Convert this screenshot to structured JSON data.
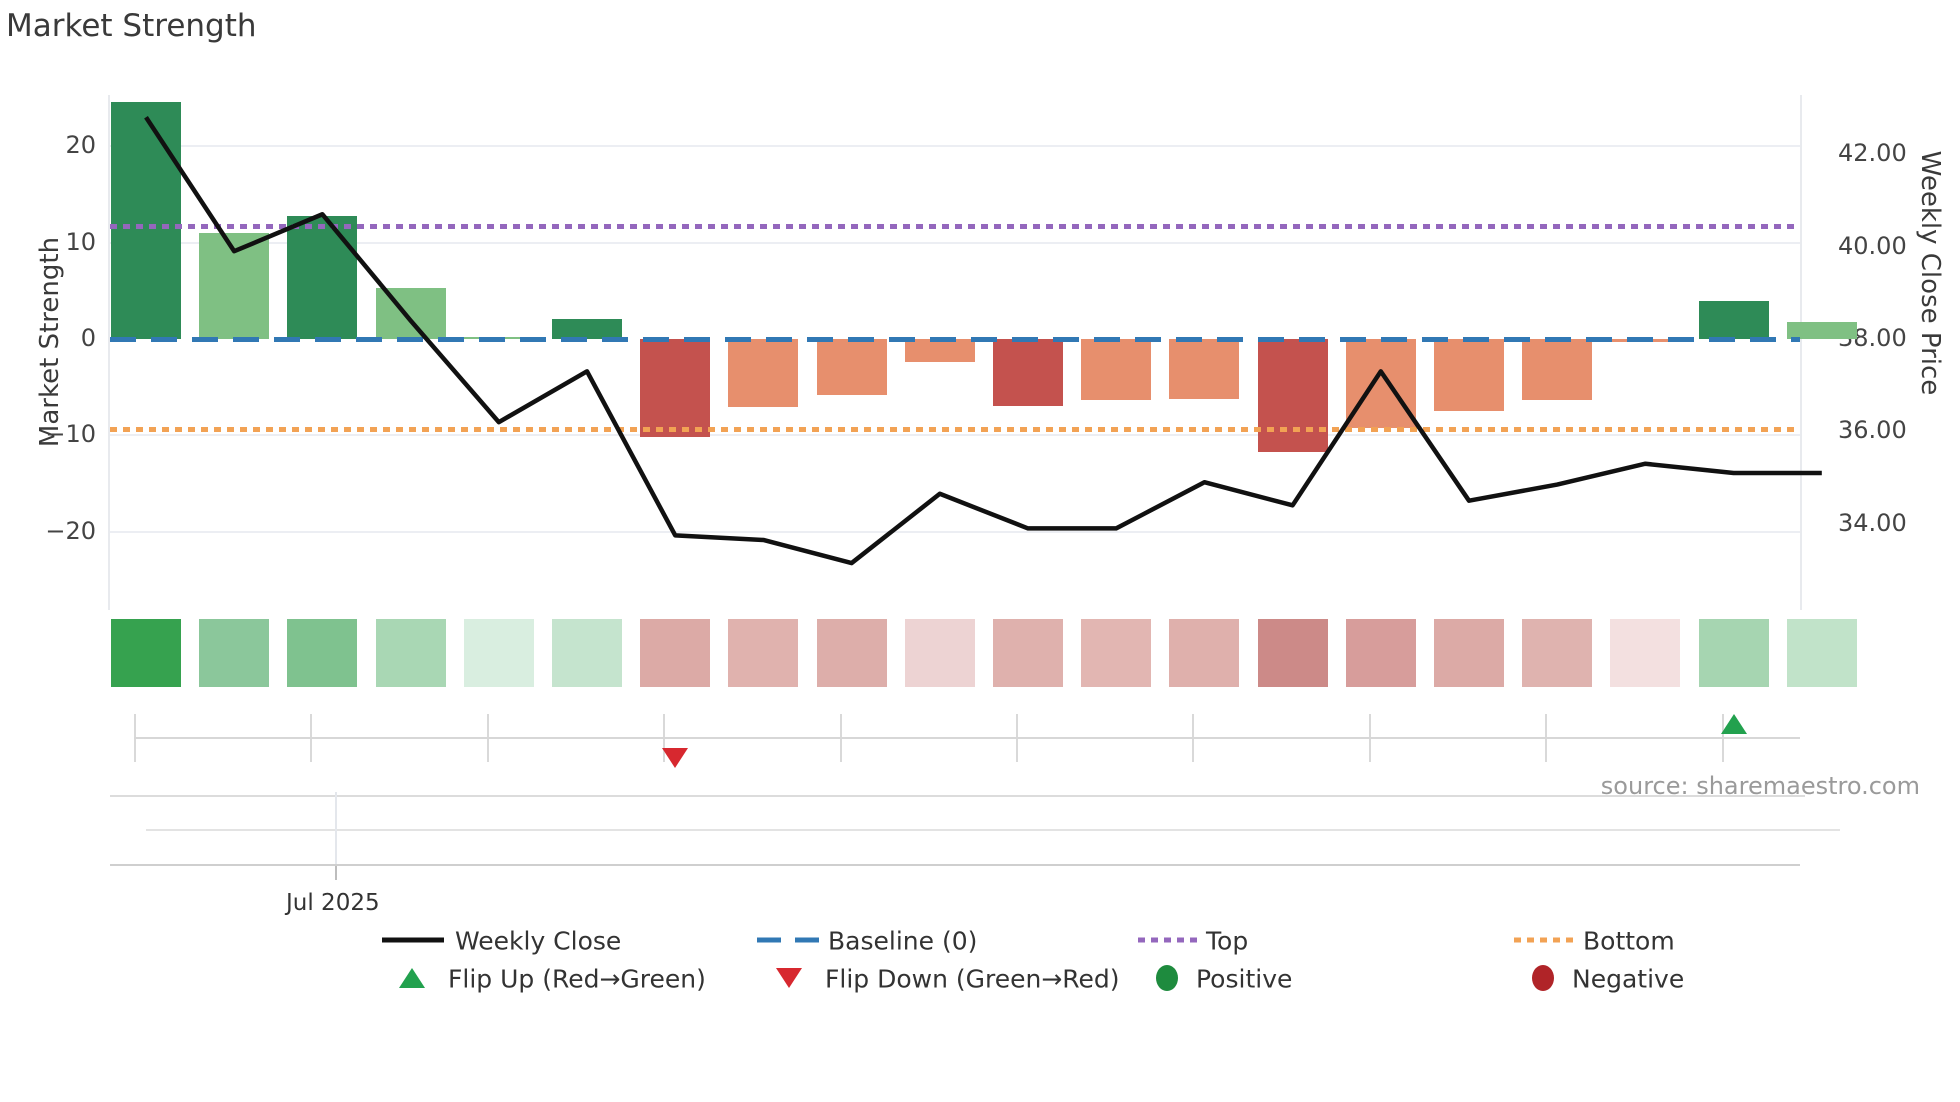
{
  "title": "Market Strength",
  "source_text": "source: sharemaestro.com",
  "axes": {
    "left_title": "Market Strength",
    "right_title": "Weekly Close Price",
    "left_ticks": [
      "20",
      "10",
      "0",
      "−10",
      "−20"
    ],
    "left_tick_values": [
      20,
      10,
      0,
      -10,
      -20
    ],
    "right_ticks": [
      "42.00",
      "40.00",
      "38.00",
      "36.00",
      "34.00"
    ],
    "right_tick_values": [
      42,
      40,
      38,
      36,
      34
    ],
    "x_tick_label": "Jul 2025"
  },
  "legend": {
    "weekly_close": "Weekly Close",
    "baseline": "Baseline (0)",
    "top": "Top",
    "bottom": "Bottom",
    "flip_up": "Flip Up (Red→Green)",
    "flip_down": "Flip Down (Green→Red)",
    "positive": "Positive",
    "negative": "Negative"
  },
  "colors": {
    "bar_dark_green": "#2e8b57",
    "bar_light_green": "#7fc083",
    "bar_dark_red": "#c4524e",
    "bar_salmon": "#e78f6d",
    "line_black": "#111111",
    "baseline_blue": "#3178b4",
    "top_purple": "#9467bd",
    "bottom_orange": "#f2a254",
    "flip_up_green": "#22a14e",
    "flip_down_red": "#d7282f",
    "positive_green": "#1e8b3e",
    "negative_red": "#b02428"
  },
  "chart_data": {
    "type": "bar+line combo with heatmap strip",
    "weeks": 20,
    "x_range_note": "weekly points, Jun-Oct 2025, only 'Jul 2025' tick visible",
    "bar_series": {
      "name": "Market Strength",
      "axis": "left",
      "ylim": [
        -27,
        26
      ],
      "values": [
        24.6,
        11.0,
        12.8,
        5.3,
        0.2,
        2.1,
        -10.2,
        -7.1,
        -5.8,
        -2.4,
        -6.9,
        -6.3,
        -6.2,
        -11.7,
        -9.2,
        -7.5,
        -6.3,
        -0.3,
        3.9,
        1.8
      ],
      "bar_colors": [
        "dark_green",
        "light_green",
        "dark_green",
        "light_green",
        "light_green",
        "dark_green",
        "dark_red",
        "salmon",
        "salmon",
        "salmon",
        "dark_red",
        "salmon",
        "salmon",
        "dark_red",
        "salmon",
        "salmon",
        "salmon",
        "salmon",
        "dark_green",
        "light_green"
      ]
    },
    "line_series": {
      "name": "Weekly Close",
      "axis": "right",
      "ylim": [
        33.0,
        43.5
      ],
      "values": [
        42.8,
        39.9,
        40.7,
        38.4,
        36.2,
        37.3,
        33.75,
        33.65,
        33.15,
        34.65,
        33.9,
        33.9,
        34.9,
        34.4,
        37.3,
        34.5,
        34.85,
        35.3,
        35.1,
        35.1
      ]
    },
    "reference_lines": {
      "baseline": 0,
      "top": 11.7,
      "bottom": -9.3
    },
    "markers": {
      "flip_down_week_index": 6,
      "flip_up_week_index": 18
    },
    "heatmap_colors": [
      "#36a24f",
      "#8bc79b",
      "#7fc28f",
      "#a9d7b4",
      "#d9eee0",
      "#c5e4ce",
      "#dcaaa6",
      "#e0b2ae",
      "#ddaeaa",
      "#edd3d3",
      "#dfb1ad",
      "#e2b6b2",
      "#dfb0ac",
      "#cc8a88",
      "#d79d9b",
      "#dcaaa6",
      "#dfb3af",
      "#f3e0e0",
      "#a6d5b1",
      "#c1e3c9"
    ],
    "grid": true,
    "legend_position": "bottom"
  }
}
